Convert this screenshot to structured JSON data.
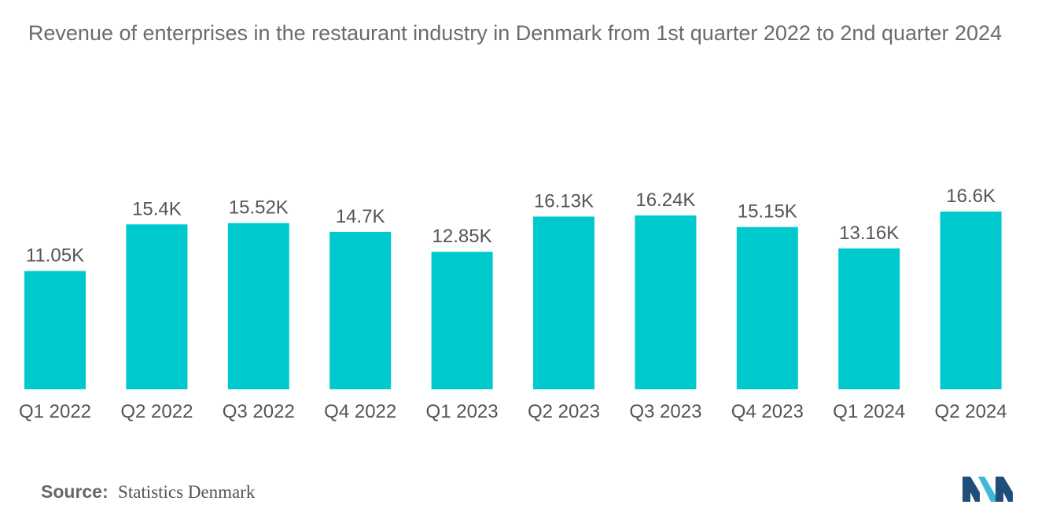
{
  "chart_data": {
    "type": "bar",
    "title": "Revenue of enterprises in the restaurant industry in Denmark from 1st quarter 2022 to 2nd quarter 2024",
    "categories": [
      "Q1 2022",
      "Q2 2022",
      "Q3 2022",
      "Q4 2022",
      "Q1 2023",
      "Q2 2023",
      "Q3 2023",
      "Q4 2023",
      "Q1 2024",
      "Q2 2024"
    ],
    "values": [
      11.05,
      15.4,
      15.52,
      14.7,
      12.85,
      16.13,
      16.24,
      15.15,
      13.16,
      16.6
    ],
    "value_labels": [
      "11.05K",
      "15.4K",
      "15.52K",
      "14.7K",
      "12.85K",
      "16.13K",
      "16.24K",
      "15.15K",
      "13.16K",
      "16.6K"
    ],
    "xlabel": "",
    "ylabel": "",
    "ylim": [
      0,
      16.6
    ],
    "grid": false,
    "legend": "none",
    "bar_color": "#00c9cd"
  },
  "source": {
    "label": "Source:",
    "value": "Statistics Denmark"
  },
  "colors": {
    "title": "#6b6b6b",
    "label": "#555555",
    "logo_dark": "#1f4e79",
    "logo_accent": "#3fb8d8"
  }
}
